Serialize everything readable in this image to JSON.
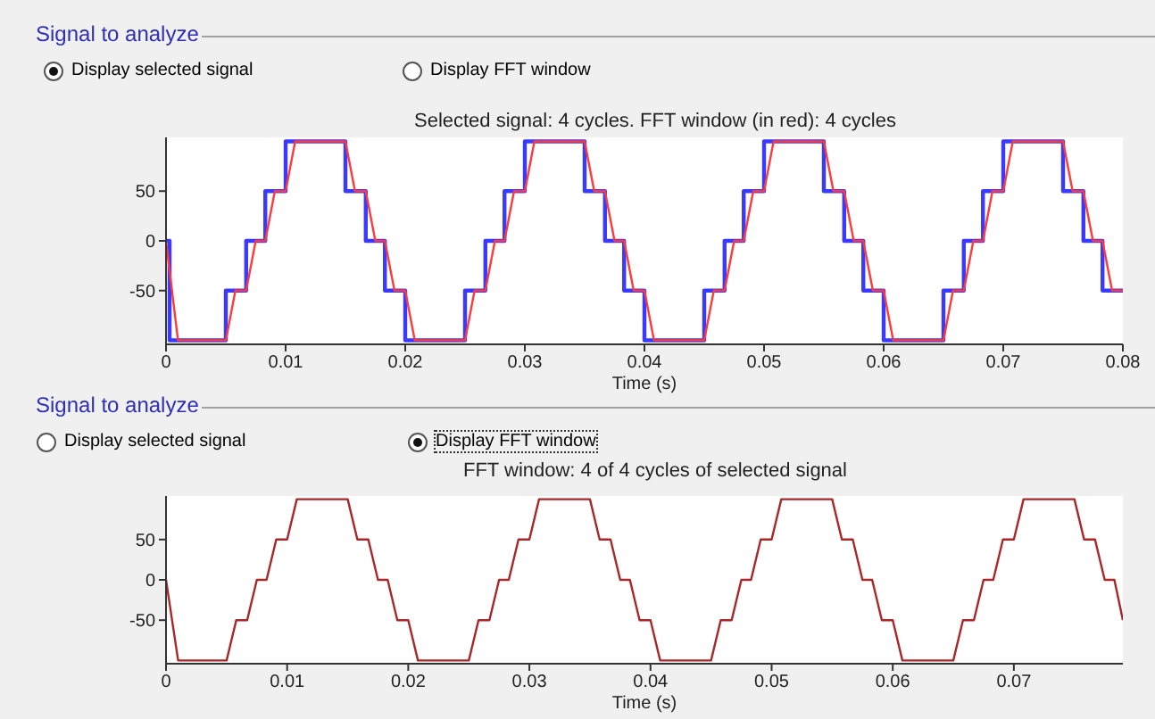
{
  "chart_data": [
    {
      "type": "line",
      "title": "Selected signal: 4 cycles. FFT window (in red): 4 cycles",
      "xlabel": "Time (s)",
      "annotations": [
        "Signal to analyze",
        "Display selected signal",
        "Display FFT window"
      ],
      "xlim": [
        0,
        0.08
      ],
      "xticks": [
        0,
        0.01,
        0.02,
        0.03,
        0.04,
        0.05,
        0.06,
        0.07,
        0.08
      ],
      "ylim": [
        -104,
        104
      ],
      "yticks": [
        -50,
        0,
        50
      ],
      "grid": false,
      "legend": false,
      "marker": "none",
      "series": [
        {
          "type": "step",
          "color": "#3a3aff",
          "x": [
            0,
            0.0003,
            0.005,
            0.0067,
            0.0083,
            0.01,
            0.015,
            0.0167,
            0.0183,
            0.02,
            0.025,
            0.0267,
            0.0283,
            0.03,
            0.035,
            0.0367,
            0.0383,
            0.04,
            0.045,
            0.0467,
            0.0483,
            0.05,
            0.055,
            0.0567,
            0.0583,
            0.06,
            0.065,
            0.0667,
            0.0683,
            0.07,
            0.075,
            0.0767,
            0.0783,
            0.08
          ],
          "values": [
            0,
            -100,
            -50,
            0,
            50,
            100,
            50,
            0,
            -50,
            -100,
            -50,
            0,
            50,
            100,
            50,
            0,
            -50,
            -100,
            -50,
            0,
            50,
            100,
            50,
            0,
            -50,
            -100,
            -50,
            0,
            50,
            100,
            50,
            0,
            -50,
            -50
          ]
        },
        {
          "type": "line",
          "color": "#ff3a3a",
          "x": [
            0,
            0.001,
            0.005,
            0.0058,
            0.0067,
            0.0075,
            0.0083,
            0.0091,
            0.01,
            0.0108,
            0.015,
            0.0158,
            0.0167,
            0.0175,
            0.0183,
            0.0191,
            0.02,
            0.0208,
            0.025,
            0.0258,
            0.0267,
            0.0275,
            0.0283,
            0.0291,
            0.03,
            0.0308,
            0.035,
            0.0358,
            0.0367,
            0.0375,
            0.0383,
            0.0391,
            0.04,
            0.0408,
            0.045,
            0.0458,
            0.0467,
            0.0475,
            0.0483,
            0.0491,
            0.05,
            0.0508,
            0.055,
            0.0558,
            0.0567,
            0.0575,
            0.0583,
            0.0591,
            0.06,
            0.0608,
            0.065,
            0.0658,
            0.0667,
            0.0675,
            0.0683,
            0.0691,
            0.07,
            0.0708,
            0.075,
            0.0758,
            0.0767,
            0.0775,
            0.0783,
            0.0791,
            0.08
          ],
          "values": [
            0,
            -100,
            -100,
            -50,
            -50,
            0,
            0,
            50,
            50,
            100,
            100,
            50,
            50,
            0,
            0,
            -50,
            -50,
            -100,
            -100,
            -50,
            -50,
            0,
            0,
            50,
            50,
            100,
            100,
            50,
            50,
            0,
            0,
            -50,
            -50,
            -100,
            -100,
            -50,
            -50,
            0,
            0,
            50,
            50,
            100,
            100,
            50,
            50,
            0,
            0,
            -50,
            -50,
            -100,
            -100,
            -50,
            -50,
            0,
            0,
            50,
            50,
            100,
            100,
            50,
            50,
            0,
            0,
            -50,
            -50
          ]
        }
      ]
    },
    {
      "type": "line",
      "title": "FFT window: 4 of 4 cycles of selected signal",
      "xlabel": "Time (s)",
      "annotations": [
        "Signal to analyze",
        "Display selected signal",
        "Display FFT window"
      ],
      "xlim": [
        0,
        0.079
      ],
      "xticks": [
        0,
        0.01,
        0.02,
        0.03,
        0.04,
        0.05,
        0.06,
        0.07
      ],
      "ylim": [
        -104,
        104
      ],
      "yticks": [
        -50,
        0,
        50
      ],
      "grid": false,
      "legend": false,
      "marker": "none",
      "series": [
        {
          "type": "line",
          "color": "#a8282a",
          "x": [
            0,
            0.001,
            0.005,
            0.0058,
            0.0067,
            0.0075,
            0.0083,
            0.0091,
            0.01,
            0.0108,
            0.015,
            0.0158,
            0.0167,
            0.0175,
            0.0183,
            0.0191,
            0.02,
            0.0208,
            0.025,
            0.0258,
            0.0267,
            0.0275,
            0.0283,
            0.0291,
            0.03,
            0.0308,
            0.035,
            0.0358,
            0.0367,
            0.0375,
            0.0383,
            0.0391,
            0.04,
            0.0408,
            0.045,
            0.0458,
            0.0467,
            0.0475,
            0.0483,
            0.0491,
            0.05,
            0.0508,
            0.055,
            0.0558,
            0.0567,
            0.0575,
            0.0583,
            0.0591,
            0.06,
            0.0608,
            0.065,
            0.0658,
            0.0667,
            0.0675,
            0.0683,
            0.0691,
            0.07,
            0.0708,
            0.075,
            0.0758,
            0.0767,
            0.0775,
            0.0783,
            0.079
          ],
          "values": [
            0,
            -100,
            -100,
            -50,
            -50,
            0,
            0,
            50,
            50,
            100,
            100,
            50,
            50,
            0,
            0,
            -50,
            -50,
            -100,
            -100,
            -50,
            -50,
            0,
            0,
            50,
            50,
            100,
            100,
            50,
            50,
            0,
            0,
            -50,
            -50,
            -100,
            -100,
            -50,
            -50,
            0,
            0,
            50,
            50,
            100,
            100,
            50,
            50,
            0,
            0,
            -50,
            -50,
            -100,
            -100,
            -50,
            -50,
            0,
            0,
            50,
            50,
            100,
            100,
            50,
            50,
            0,
            0,
            -50
          ]
        }
      ]
    }
  ]
}
